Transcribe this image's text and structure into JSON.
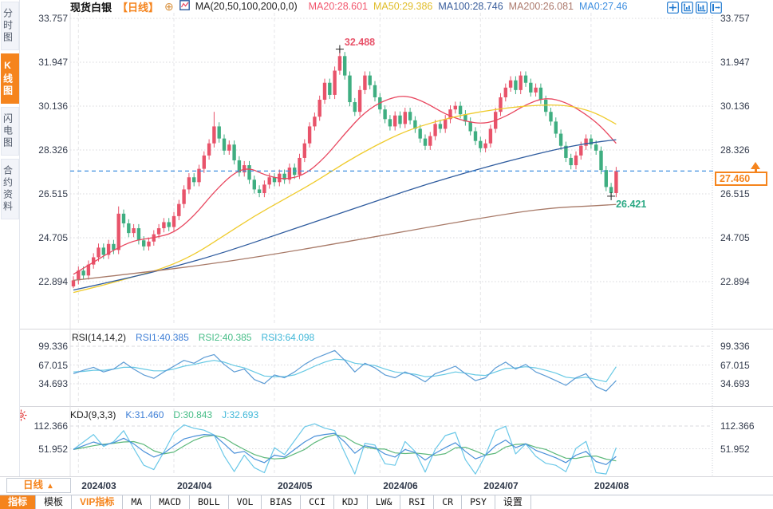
{
  "sidebar": {
    "tabs": [
      {
        "label": "分时图",
        "active": false
      },
      {
        "label": "K线图",
        "active": true
      },
      {
        "label": "闪电图",
        "active": false
      },
      {
        "label": "合约资料",
        "active": false
      }
    ]
  },
  "header": {
    "symbol": "现货白银",
    "period": "【日线】",
    "add_icon": "⊕",
    "ma_formula": "MA(20,50,100,200,0,0)",
    "ma_values": [
      {
        "text": "MA20:28.601",
        "color": "#f2566d"
      },
      {
        "text": "MA50:29.386",
        "color": "#e0bd2a"
      },
      {
        "text": "MA100:28.746",
        "color": "#3a5e9c"
      },
      {
        "text": "MA200:26.081",
        "color": "#ad7a6d"
      },
      {
        "text": "MA0:27.46",
        "color": "#3f8fe0"
      }
    ],
    "tools": [
      "crosshair-icon",
      "zoom-y-axis-icon",
      "zoom-x-axis-icon",
      "pan-right-icon"
    ]
  },
  "price_panel": {
    "axis_labels": [
      "33.757",
      "31.947",
      "30.136",
      "28.326",
      "26.515",
      "24.705",
      "22.894"
    ],
    "high_label": "32.488",
    "low_label": "26.421",
    "last_price_label": "27.460"
  },
  "rsi_panel": {
    "title": "RSI(14,14,2)",
    "values": [
      {
        "text": "RSI1:40.385",
        "color": "#3f7fd6"
      },
      {
        "text": "RSI2:40.385",
        "color": "#46bd87"
      },
      {
        "text": "RSI3:64.098",
        "color": "#3fb7d8"
      }
    ],
    "axis_labels": [
      "99.336",
      "67.015",
      "34.693"
    ]
  },
  "kdj_panel": {
    "title": "KDJ(9,3,3)",
    "values": [
      {
        "text": "K:31.460",
        "color": "#3f7fd6"
      },
      {
        "text": "D:30.843",
        "color": "#46bd87"
      },
      {
        "text": "J:32.693",
        "color": "#3fb7d8"
      }
    ],
    "axis_labels": [
      "112.366",
      "51.952"
    ]
  },
  "xaxis": {
    "period_button": "日线",
    "period_arrow": "▲",
    "labels": [
      "2024/03",
      "2024/04",
      "2024/05",
      "2024/06",
      "2024/07",
      "2024/08"
    ]
  },
  "toolbar": {
    "items": [
      {
        "label": "指标",
        "state": "active"
      },
      {
        "label": "模板",
        "state": "normal"
      },
      {
        "label": "VIP指标",
        "state": "vip"
      },
      {
        "label": "MA",
        "state": "normal"
      },
      {
        "label": "MACD",
        "state": "normal"
      },
      {
        "label": "BOLL",
        "state": "normal"
      },
      {
        "label": "VOL",
        "state": "normal"
      },
      {
        "label": "BIAS",
        "state": "normal"
      },
      {
        "label": "CCI",
        "state": "normal"
      },
      {
        "label": "KDJ",
        "state": "normal"
      },
      {
        "label": "LW&",
        "state": "normal"
      },
      {
        "label": "RSI",
        "state": "normal"
      },
      {
        "label": "CR",
        "state": "normal"
      },
      {
        "label": "PSY",
        "state": "normal"
      },
      {
        "label": "设置",
        "state": "normal"
      }
    ]
  },
  "colors": {
    "accent": "#f5841d",
    "candle_up": "#e8536a",
    "candle_down": "#3fae81",
    "price_line": "#3f8fe0",
    "grid": "#d8d8dd",
    "vgrid": "#e4e4e8",
    "separator": "#d6d6db",
    "text": "#333b4c",
    "high_label": "#e8536a",
    "low_label": "#2aa883",
    "icon_blue": "#1e78d0",
    "cross_marker": "#222222"
  },
  "chart_data": {
    "type": "candlestick",
    "title": "现货白银 日线",
    "price_ticks": [
      33.757,
      31.947,
      30.136,
      28.326,
      26.515,
      24.705,
      22.894
    ],
    "x_tick_labels": [
      "2024/03",
      "2024/04",
      "2024/05",
      "2024/06",
      "2024/07",
      "2024/08"
    ],
    "month_start_indices": [
      1,
      20,
      40,
      61,
      81,
      103
    ],
    "last_price": 27.46,
    "high_annotation": {
      "index": 53,
      "price": 32.488
    },
    "low_annotation": {
      "index": 107,
      "price": 26.421
    },
    "open_first": 22.7,
    "wick": 0.17,
    "closes": [
      22.95,
      23.35,
      23.15,
      23.6,
      23.9,
      24.3,
      24.0,
      24.45,
      24.2,
      25.7,
      25.3,
      24.9,
      25.1,
      24.6,
      24.35,
      24.55,
      24.85,
      25.1,
      25.35,
      25.15,
      25.6,
      26.1,
      26.7,
      27.2,
      27.0,
      27.55,
      28.1,
      28.6,
      29.3,
      28.8,
      28.3,
      28.55,
      27.9,
      27.4,
      27.7,
      27.1,
      26.7,
      26.55,
      26.9,
      27.2,
      27.0,
      27.35,
      27.1,
      27.6,
      27.3,
      28.0,
      28.6,
      29.3,
      29.7,
      30.4,
      31.1,
      30.6,
      31.6,
      32.2,
      31.4,
      30.3,
      29.9,
      30.8,
      31.4,
      31.0,
      30.5,
      30.0,
      29.6,
      29.3,
      29.75,
      29.4,
      29.9,
      29.55,
      29.2,
      28.8,
      28.5,
      28.9,
      29.4,
      29.2,
      29.6,
      30.0,
      30.15,
      29.8,
      29.5,
      29.1,
      28.7,
      28.4,
      28.6,
      29.2,
      29.9,
      30.5,
      30.9,
      31.2,
      30.8,
      31.4,
      31.1,
      30.7,
      30.9,
      30.4,
      29.9,
      29.5,
      29.0,
      28.5,
      28.0,
      27.7,
      28.1,
      28.5,
      28.8,
      28.55,
      28.3,
      27.5,
      26.8,
      26.55,
      27.46
    ],
    "wick_overrides": {
      "0": {
        "low": 22.63
      },
      "9": {
        "high": 26.0
      },
      "28": {
        "high": 29.9
      },
      "53": {
        "high": 32.488
      },
      "107": {
        "low": 26.421
      }
    },
    "ma_lines": [
      {
        "name": "MA20",
        "color": "#e8475f",
        "points": [
          [
            0,
            23.2
          ],
          [
            4,
            23.7
          ],
          [
            8,
            24.2
          ],
          [
            12,
            24.6
          ],
          [
            16,
            24.7
          ],
          [
            20,
            24.9
          ],
          [
            24,
            25.6
          ],
          [
            28,
            26.6
          ],
          [
            32,
            27.4
          ],
          [
            35,
            27.6
          ],
          [
            38,
            27.3
          ],
          [
            42,
            27.1
          ],
          [
            46,
            27.3
          ],
          [
            50,
            28.0
          ],
          [
            54,
            29.0
          ],
          [
            58,
            29.9
          ],
          [
            62,
            30.4
          ],
          [
            66,
            30.6
          ],
          [
            70,
            30.3
          ],
          [
            74,
            29.8
          ],
          [
            78,
            29.5
          ],
          [
            82,
            29.4
          ],
          [
            86,
            29.7
          ],
          [
            90,
            30.2
          ],
          [
            94,
            30.5
          ],
          [
            98,
            30.3
          ],
          [
            102,
            29.8
          ],
          [
            105,
            29.3
          ],
          [
            108,
            28.6
          ]
        ]
      },
      {
        "name": "MA50",
        "color": "#efcb2d",
        "points": [
          [
            0,
            22.45
          ],
          [
            6,
            22.75
          ],
          [
            12,
            23.1
          ],
          [
            18,
            23.45
          ],
          [
            24,
            24.0
          ],
          [
            30,
            24.8
          ],
          [
            36,
            25.6
          ],
          [
            42,
            26.3
          ],
          [
            48,
            27.0
          ],
          [
            54,
            27.8
          ],
          [
            60,
            28.5
          ],
          [
            66,
            29.1
          ],
          [
            72,
            29.5
          ],
          [
            78,
            29.8
          ],
          [
            84,
            30.0
          ],
          [
            90,
            30.15
          ],
          [
            96,
            30.2
          ],
          [
            100,
            30.1
          ],
          [
            104,
            29.85
          ],
          [
            108,
            29.39
          ]
        ]
      },
      {
        "name": "MA100",
        "color": "#2e5b9e",
        "points": [
          [
            0,
            22.55
          ],
          [
            10,
            23.0
          ],
          [
            20,
            23.5
          ],
          [
            30,
            24.1
          ],
          [
            40,
            24.8
          ],
          [
            50,
            25.5
          ],
          [
            60,
            26.2
          ],
          [
            70,
            26.9
          ],
          [
            80,
            27.5
          ],
          [
            88,
            27.95
          ],
          [
            96,
            28.35
          ],
          [
            102,
            28.6
          ],
          [
            108,
            28.75
          ]
        ]
      },
      {
        "name": "MA200",
        "color": "#a87a68",
        "points": [
          [
            0,
            22.95
          ],
          [
            15,
            23.3
          ],
          [
            30,
            23.7
          ],
          [
            45,
            24.2
          ],
          [
            60,
            24.75
          ],
          [
            75,
            25.3
          ],
          [
            88,
            25.75
          ],
          [
            96,
            25.95
          ],
          [
            103,
            26.02
          ],
          [
            108,
            26.08
          ]
        ]
      }
    ],
    "rsi": {
      "ticks": [
        99.336,
        67.015,
        34.693
      ],
      "series_step": 2,
      "rsi1": [
        52,
        58,
        63,
        55,
        60,
        72,
        60,
        50,
        44,
        55,
        65,
        75,
        70,
        80,
        85,
        68,
        55,
        60,
        42,
        35,
        50,
        45,
        55,
        68,
        78,
        85,
        92,
        75,
        55,
        70,
        62,
        50,
        45,
        55,
        48,
        38,
        52,
        58,
        65,
        52,
        40,
        45,
        62,
        72,
        60,
        68,
        55,
        48,
        40,
        32,
        45,
        52,
        30,
        22,
        40
      ],
      "rsi3": [
        55,
        56,
        58,
        58,
        60,
        63,
        63,
        60,
        57,
        57,
        60,
        65,
        68,
        72,
        75,
        72,
        66,
        62,
        55,
        48,
        47,
        47,
        50,
        57,
        65,
        72,
        77,
        76,
        70,
        68,
        66,
        60,
        55,
        53,
        51,
        47,
        48,
        51,
        55,
        53,
        50,
        49,
        55,
        61,
        62,
        64,
        62,
        58,
        53,
        46,
        44,
        46,
        42,
        38,
        64
      ],
      "colors": {
        "rsi1": "#5b9bd5",
        "rsi3": "#66c9e4"
      }
    },
    "kdj": {
      "ticks": [
        112.366,
        51.952
      ],
      "series_step": 2,
      "k": [
        50,
        60,
        70,
        62,
        68,
        80,
        65,
        45,
        30,
        40,
        60,
        78,
        85,
        90,
        88,
        65,
        40,
        45,
        25,
        15,
        35,
        30,
        50,
        70,
        85,
        90,
        93,
        70,
        40,
        60,
        55,
        38,
        30,
        50,
        42,
        22,
        40,
        55,
        68,
        45,
        25,
        35,
        60,
        75,
        55,
        65,
        48,
        38,
        28,
        15,
        35,
        45,
        18,
        10,
        31.5
      ],
      "colors": {
        "k": "#4a90d9",
        "d": "#5cb87a",
        "j": "#6ac8e8"
      }
    }
  }
}
